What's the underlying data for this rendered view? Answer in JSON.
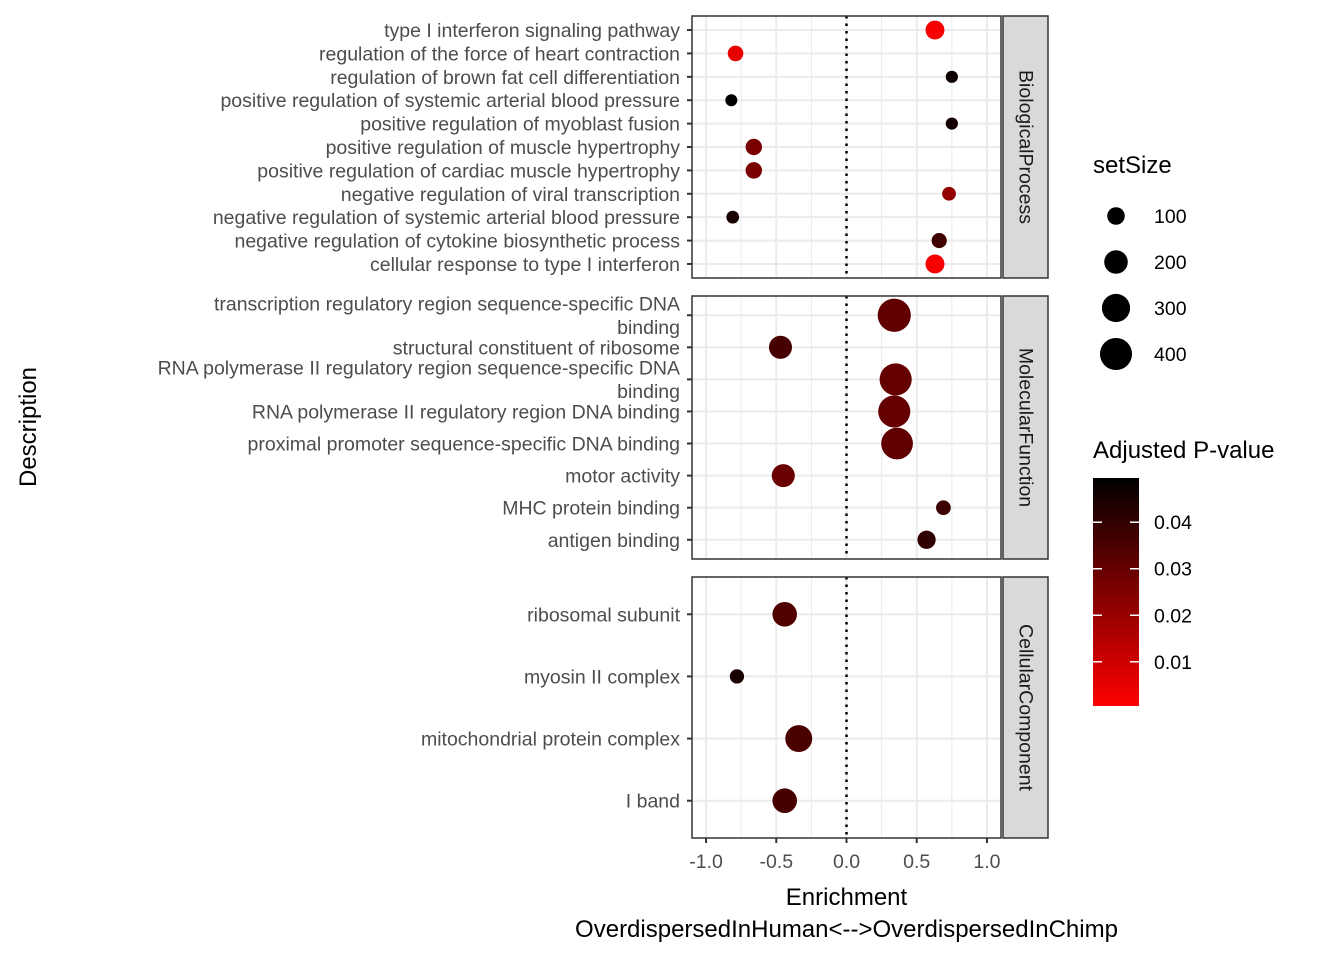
{
  "chart_data": {
    "type": "scatter",
    "xlabel_lines": [
      "Enrichment",
      "OverdispersedInHuman<-->OverdispersedInChimp"
    ],
    "ylabel": "Description",
    "xlim": [
      -1.1,
      1.1
    ],
    "x_ticks": [
      -1.0,
      -0.5,
      0.0,
      0.5,
      1.0
    ],
    "x_tick_labels": [
      "-1.0",
      "-0.5",
      "0.0",
      "0.5",
      "1.0"
    ],
    "reference_line": {
      "x": 0,
      "style": "dotted"
    },
    "grid": true,
    "facets": [
      {
        "strip": "BiologicalProcess",
        "rows": [
          {
            "label": "type I interferon signaling pathway",
            "x": 0.63,
            "setSize": 120,
            "padj": 0.002
          },
          {
            "label": "regulation of the force of heart contraction",
            "x": -0.79,
            "setSize": 75,
            "padj": 0.005
          },
          {
            "label": "regulation of brown fat cell differentiation",
            "x": 0.75,
            "setSize": 40,
            "padj": 0.047
          },
          {
            "label": "positive regulation of systemic arterial blood pressure",
            "x": -0.82,
            "setSize": 38,
            "padj": 0.049
          },
          {
            "label": "positive regulation of myoblast fusion",
            "x": 0.75,
            "setSize": 40,
            "padj": 0.046
          },
          {
            "label": "positive regulation of muscle hypertrophy",
            "x": -0.66,
            "setSize": 85,
            "padj": 0.026
          },
          {
            "label": "positive regulation of cardiac muscle hypertrophy",
            "x": -0.66,
            "setSize": 85,
            "padj": 0.026
          },
          {
            "label": "negative regulation of viral transcription",
            "x": 0.73,
            "setSize": 55,
            "padj": 0.021
          },
          {
            "label": "negative regulation of systemic arterial blood pressure",
            "x": -0.81,
            "setSize": 45,
            "padj": 0.045
          },
          {
            "label": "negative regulation of cytokine biosynthetic process",
            "x": 0.66,
            "setSize": 70,
            "padj": 0.037
          },
          {
            "label": "cellular response to type I interferon",
            "x": 0.63,
            "setSize": 120,
            "padj": 0.002
          }
        ]
      },
      {
        "strip": "MolecularFunction",
        "rows": [
          {
            "label": "transcription regulatory region sequence-specific DNA binding",
            "lines": [
              "transcription regulatory region sequence-specific DNA",
              "binding"
            ],
            "x": 0.34,
            "setSize": 430,
            "padj": 0.031
          },
          {
            "label": "structural constituent of ribosome",
            "x": -0.47,
            "setSize": 190,
            "padj": 0.036
          },
          {
            "label": "RNA polymerase II regulatory region sequence-specific DNA binding",
            "lines": [
              "RNA polymerase II regulatory region sequence-specific DNA",
              "binding"
            ],
            "x": 0.35,
            "setSize": 400,
            "padj": 0.03
          },
          {
            "label": "RNA polymerase II regulatory region DNA binding",
            "x": 0.34,
            "setSize": 400,
            "padj": 0.03
          },
          {
            "label": "proximal promoter sequence-specific DNA binding",
            "x": 0.36,
            "setSize": 390,
            "padj": 0.031
          },
          {
            "label": "motor activity",
            "x": -0.45,
            "setSize": 190,
            "padj": 0.029
          },
          {
            "label": "MHC protein binding",
            "x": 0.69,
            "setSize": 65,
            "padj": 0.038
          },
          {
            "label": "antigen binding",
            "x": 0.57,
            "setSize": 110,
            "padj": 0.04
          }
        ]
      },
      {
        "strip": "CellularComponent",
        "rows": [
          {
            "label": "ribosomal subunit",
            "x": -0.44,
            "setSize": 220,
            "padj": 0.034
          },
          {
            "label": "myosin II complex",
            "x": -0.78,
            "setSize": 60,
            "padj": 0.045
          },
          {
            "label": "mitochondrial protein complex",
            "x": -0.34,
            "setSize": 270,
            "padj": 0.035
          },
          {
            "label": "I band",
            "x": -0.44,
            "setSize": 220,
            "padj": 0.036
          }
        ]
      }
    ],
    "legend_size": {
      "title": "setSize",
      "labels": [
        "100",
        "200",
        "300",
        "400"
      ],
      "values": [
        100,
        200,
        300,
        400
      ]
    },
    "legend_color": {
      "title": "Adjusted P-value",
      "labels": [
        "0.01",
        "0.02",
        "0.03",
        "0.04"
      ],
      "values": [
        0.01,
        0.02,
        0.03,
        0.04
      ],
      "range": [
        0.0005,
        0.0495
      ],
      "low_color": "#FF0000",
      "high_color": "#000000"
    },
    "colors": {
      "panel_border": "#333333",
      "grid": "#ebebeb",
      "strip_fill": "#d9d9d9",
      "tick": "#333333"
    }
  }
}
